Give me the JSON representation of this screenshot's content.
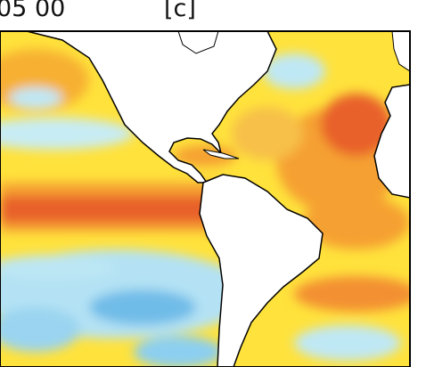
{
  "header": {
    "time_label": "05 00",
    "panel_label": "[c]"
  }
}
